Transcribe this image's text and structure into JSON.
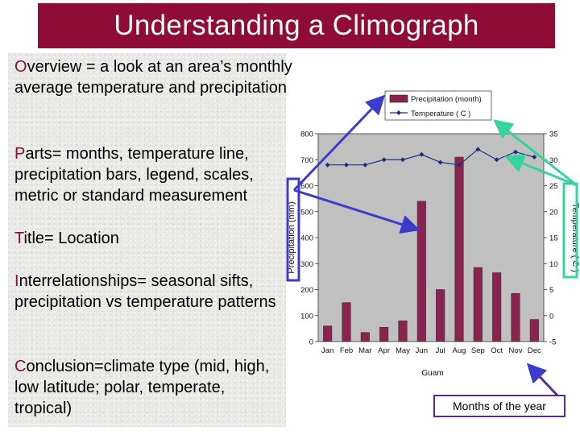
{
  "title": "Understanding a Climograph",
  "paragraphs": {
    "overview": {
      "initial": "O",
      "rest": "verview = a look at an area’s monthly average temperature and precipitation"
    },
    "parts": {
      "initial": "P",
      "rest": "arts= months, temperature line, precipitation bars, legend, scales, metric or standard measurement"
    },
    "title_note": {
      "initial": "T",
      "rest": "itle= Location"
    },
    "interrelationships": {
      "initial": "I",
      "rest": "nterrelationships= seasonal sifts, precipitation vs temperature patterns"
    },
    "conclusion": {
      "initial": "C",
      "rest": "onclusion=climate type (mid, high, low latitude; polar, temperate, tropical)"
    }
  },
  "callout": {
    "months": "Months of the year"
  },
  "colors": {
    "title_bg": "#8e0c35",
    "bar": "#8b2350",
    "line": "#1e2f7a",
    "arrow_blue": "#3c3ccc",
    "arrow_teal": "#35d3a0",
    "plot_bg": "#c0c0c0"
  },
  "chart_data": {
    "type": "bar",
    "title": "Guam",
    "categories": [
      "Jan",
      "Feb",
      "Mar",
      "Apr",
      "May",
      "Jun",
      "Jul",
      "Aug",
      "Sep",
      "Oct",
      "Nov",
      "Dec"
    ],
    "series": [
      {
        "name": "Precipitation (month)",
        "type": "bar",
        "axis": "left",
        "values": [
          60,
          150,
          35,
          55,
          80,
          540,
          200,
          710,
          285,
          265,
          185,
          85
        ]
      },
      {
        "name": "Temperature ( C )",
        "type": "line",
        "axis": "right",
        "values": [
          29,
          29,
          29,
          30,
          30,
          31,
          29.5,
          29,
          32,
          30,
          31.5,
          30.5
        ]
      }
    ],
    "ylabel": "Precipitation (mm)",
    "y2label": "Temperature ( C )",
    "ylim": [
      0,
      800
    ],
    "y2lim": [
      -5,
      35
    ],
    "yticks": [
      "800",
      "700",
      "600",
      "500",
      "400",
      "300",
      "200",
      "100",
      "0"
    ],
    "y2ticks": [
      "35",
      "30",
      "25",
      "20",
      "15",
      "10",
      "5",
      "0",
      "-5"
    ],
    "grid": false,
    "legend": "top"
  }
}
